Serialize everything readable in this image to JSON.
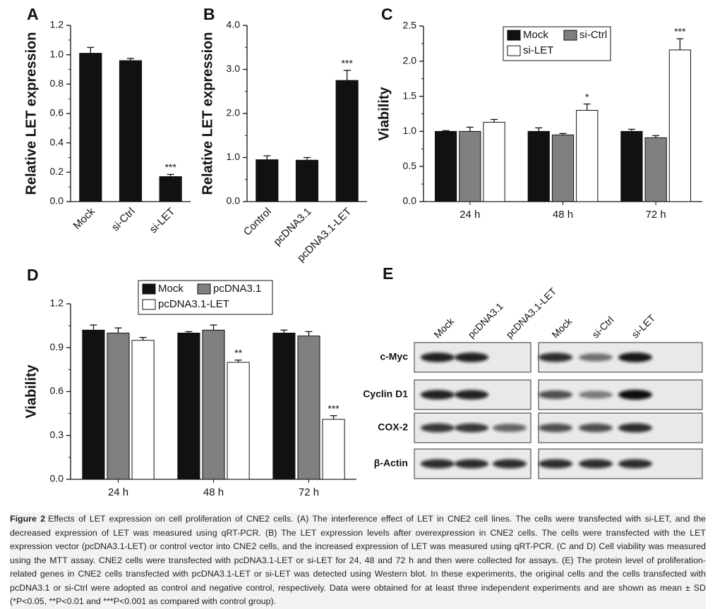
{
  "chart_data": [
    {
      "type": "bar",
      "panel": "A",
      "y_label": "Relative LET expression",
      "categories": [
        "Mock",
        "si-Ctrl",
        "si-LET"
      ],
      "values": [
        1.01,
        0.96,
        0.17
      ],
      "errors": [
        0.04,
        0.015,
        0.015
      ],
      "significance": [
        null,
        null,
        "***"
      ],
      "color": "#111111",
      "ylim": [
        0,
        1.2
      ],
      "yticks": [
        {
          "value": 0,
          "label": "0.0"
        },
        {
          "value": 0.2,
          "label": "0.2"
        },
        {
          "value": 0.4,
          "label": "0.4"
        },
        {
          "value": 0.6,
          "label": "0.6"
        },
        {
          "value": 0.8,
          "label": "0.8"
        },
        {
          "value": 1,
          "label": "1.0"
        },
        {
          "value": 1.2,
          "label": "1.2"
        }
      ]
    },
    {
      "type": "bar",
      "panel": "B",
      "y_label": "Relative LET expression",
      "categories": [
        "Control",
        "pcDNA3.1",
        "pcDNA3.1-LET"
      ],
      "values": [
        0.95,
        0.94,
        2.75
      ],
      "errors": [
        0.09,
        0.06,
        0.23
      ],
      "significance": [
        null,
        null,
        "***"
      ],
      "color": "#111111",
      "ylim": [
        0,
        4
      ],
      "yticks": [
        {
          "value": 0,
          "label": "0.0"
        },
        {
          "value": 1,
          "label": "1.0"
        },
        {
          "value": 2,
          "label": "2.0"
        },
        {
          "value": 3,
          "label": "3.0"
        },
        {
          "value": 4,
          "label": "4.0"
        }
      ]
    },
    {
      "type": "grouped_bar",
      "panel": "C",
      "y_label": "Viability",
      "categories": [
        "24 h",
        "48 h",
        "72 h"
      ],
      "series": [
        {
          "name": "Mock",
          "color": "#111111",
          "values": [
            1.0,
            1.0,
            1.0
          ],
          "errors": [
            0.01,
            0.05,
            0.03
          ],
          "significance": [
            null,
            null,
            null
          ]
        },
        {
          "name": "si-Ctrl",
          "color": "#808080",
          "values": [
            1.0,
            0.95,
            0.91
          ],
          "errors": [
            0.06,
            0.02,
            0.03
          ],
          "significance": [
            null,
            null,
            null
          ]
        },
        {
          "name": "si-LET",
          "color": "#ffffff",
          "values": [
            1.13,
            1.3,
            2.16
          ],
          "errors": [
            0.04,
            0.09,
            0.16
          ],
          "significance": [
            null,
            "*",
            "***"
          ]
        }
      ],
      "ylim": [
        0,
        2.5
      ],
      "yticks": [
        {
          "value": 0,
          "label": "0.0"
        },
        {
          "value": 0.5,
          "label": "0.5"
        },
        {
          "value": 1,
          "label": "1.0"
        },
        {
          "value": 1.5,
          "label": "1.5"
        },
        {
          "value": 2,
          "label": "2.0"
        },
        {
          "value": 2.5,
          "label": "2.5"
        }
      ]
    },
    {
      "type": "grouped_bar",
      "panel": "D",
      "y_label": "Viability",
      "categories": [
        "24 h",
        "48 h",
        "72 h"
      ],
      "series": [
        {
          "name": "Mock",
          "color": "#111111",
          "values": [
            1.02,
            1.0,
            1.0
          ],
          "errors": [
            0.035,
            0.01,
            0.02
          ],
          "significance": [
            null,
            null,
            null
          ]
        },
        {
          "name": "pcDNA3.1",
          "color": "#808080",
          "values": [
            1.0,
            1.02,
            0.98
          ],
          "errors": [
            0.035,
            0.035,
            0.03
          ],
          "significance": [
            null,
            null,
            null
          ]
        },
        {
          "name": "pcDNA3.1-LET",
          "color": "#ffffff",
          "values": [
            0.95,
            0.8,
            0.41
          ],
          "errors": [
            0.02,
            0.015,
            0.025
          ],
          "significance": [
            null,
            "**",
            "***"
          ]
        }
      ],
      "ylim": [
        0,
        1.2
      ],
      "yticks": [
        {
          "value": 0,
          "label": "0.0"
        },
        {
          "value": 0.3,
          "label": "0.3"
        },
        {
          "value": 0.6,
          "label": "0.6"
        },
        {
          "value": 0.9,
          "label": "0.9"
        },
        {
          "value": 1.2,
          "label": "1.2"
        }
      ]
    }
  ],
  "blot": {
    "panel": "E",
    "lanes_left": [
      "Mock",
      "pcDNA3.1",
      "pcDNA3.1-LET"
    ],
    "lanes_right": [
      "Mock",
      "si-Ctrl",
      "si-LET"
    ],
    "proteins": [
      "c-Myc",
      "Cyclin D1",
      "COX-2",
      "β-Actin"
    ]
  },
  "caption": {
    "label": "Figure 2",
    "text": "Effects of LET expression on cell proliferation of CNE2 cells. (A) The interference effect of LET in CNE2 cell lines. The cells were transfected with si-LET, and the decreased expression of LET was measured using qRT-PCR. (B) The LET expression levels after overexpression in CNE2 cells. The cells were transfected with the LET expression vector (pcDNA3.1-LET) or control vector into CNE2 cells, and the increased expression of LET was measured using qRT-PCR. (C and D) Cell viability was measured using the MTT assay. CNE2 cells were transfected with pcDNA3.1-LET or si-LET for 24, 48 and 72 h and then were collected for assays. (E) The protein level of proliferation-related genes in CNE2 cells transfected with pcDNA3.1-LET or si-LET was detected using Western blot. In these experiments, the original cells and the cells transfected with pcDNA3.1 or si-Ctrl were adopted as control and negative control, respectively. Data were obtained for at least three independent experiments and are shown as mean ± SD (*P<0.05, **P<0.01 and ***P<0.001 as compared with control group)."
  }
}
